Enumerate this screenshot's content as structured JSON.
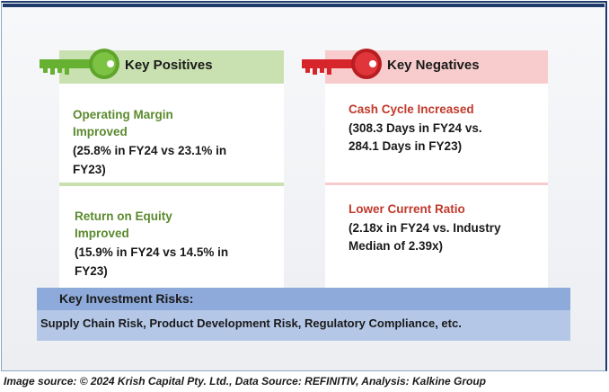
{
  "positives": {
    "header": "Key Positives",
    "icon": "green-key-icon",
    "color": "#5b8a2e",
    "items": [
      {
        "title_line1": "Operating Margin",
        "title_line2": "Improved",
        "desc_line1": "(25.8% in FY24 vs 23.1% in",
        "desc_line2": "FY23)"
      },
      {
        "title_line1": "Return on Equity",
        "title_line2": "Improved",
        "desc_line1": "(15.9% in FY24 vs 14.5% in",
        "desc_line2": "FY23)"
      }
    ]
  },
  "negatives": {
    "header": "Key Negatives",
    "icon": "red-key-icon",
    "color": "#c0392b",
    "items": [
      {
        "title_line1": "Cash Cycle Increased",
        "desc_line1": "(308.3 Days in FY24 vs.",
        "desc_line2": "284.1 Days in FY23)"
      },
      {
        "title_line1": "Lower Current Ratio",
        "desc_line1": "(2.18x in FY24 vs. Industry",
        "desc_line2": "Median of 2.39x)"
      }
    ]
  },
  "risks": {
    "header": "Key Investment Risks:",
    "body": "Supply Chain Risk, Product Development Risk, Regulatory Compliance, etc."
  },
  "source": "Image source: © 2024 Krish Capital Pty. Ltd., Data Source: REFINITIV, Analysis: Kalkine Group"
}
